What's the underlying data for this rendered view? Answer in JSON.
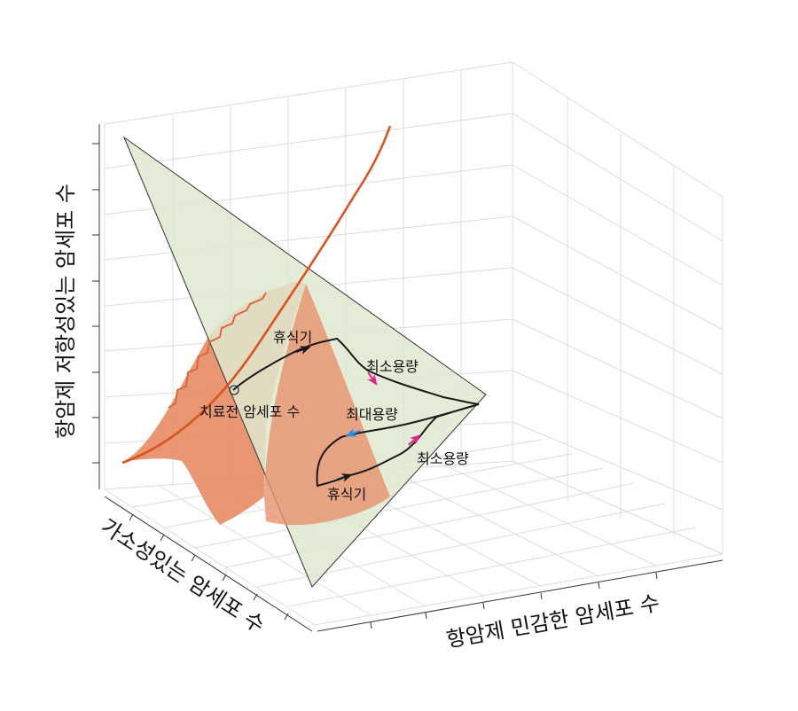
{
  "axes": {
    "z_label": "항암제 저항성있는 암세포 수",
    "y_label": "가소성있는 암세포 수",
    "x_label": "항암제 민감한 암세포 수"
  },
  "annotations": {
    "start": "치료전 암세포 수",
    "rest_1": "휴식기",
    "rest_2": "휴식기",
    "min_dose_1": "최소용량",
    "min_dose_2": "최소용량",
    "max_dose": "최대용량"
  },
  "colors": {
    "plane_fill": "#dfe8cf",
    "surface_fill": "#e8906c",
    "surface_edge": "#d9683d",
    "curve": "#d9541e",
    "trajectory": "#1a1a1a",
    "arrow_min_dose": "#e6228c",
    "arrow_max_dose": "#2a8fe0"
  }
}
